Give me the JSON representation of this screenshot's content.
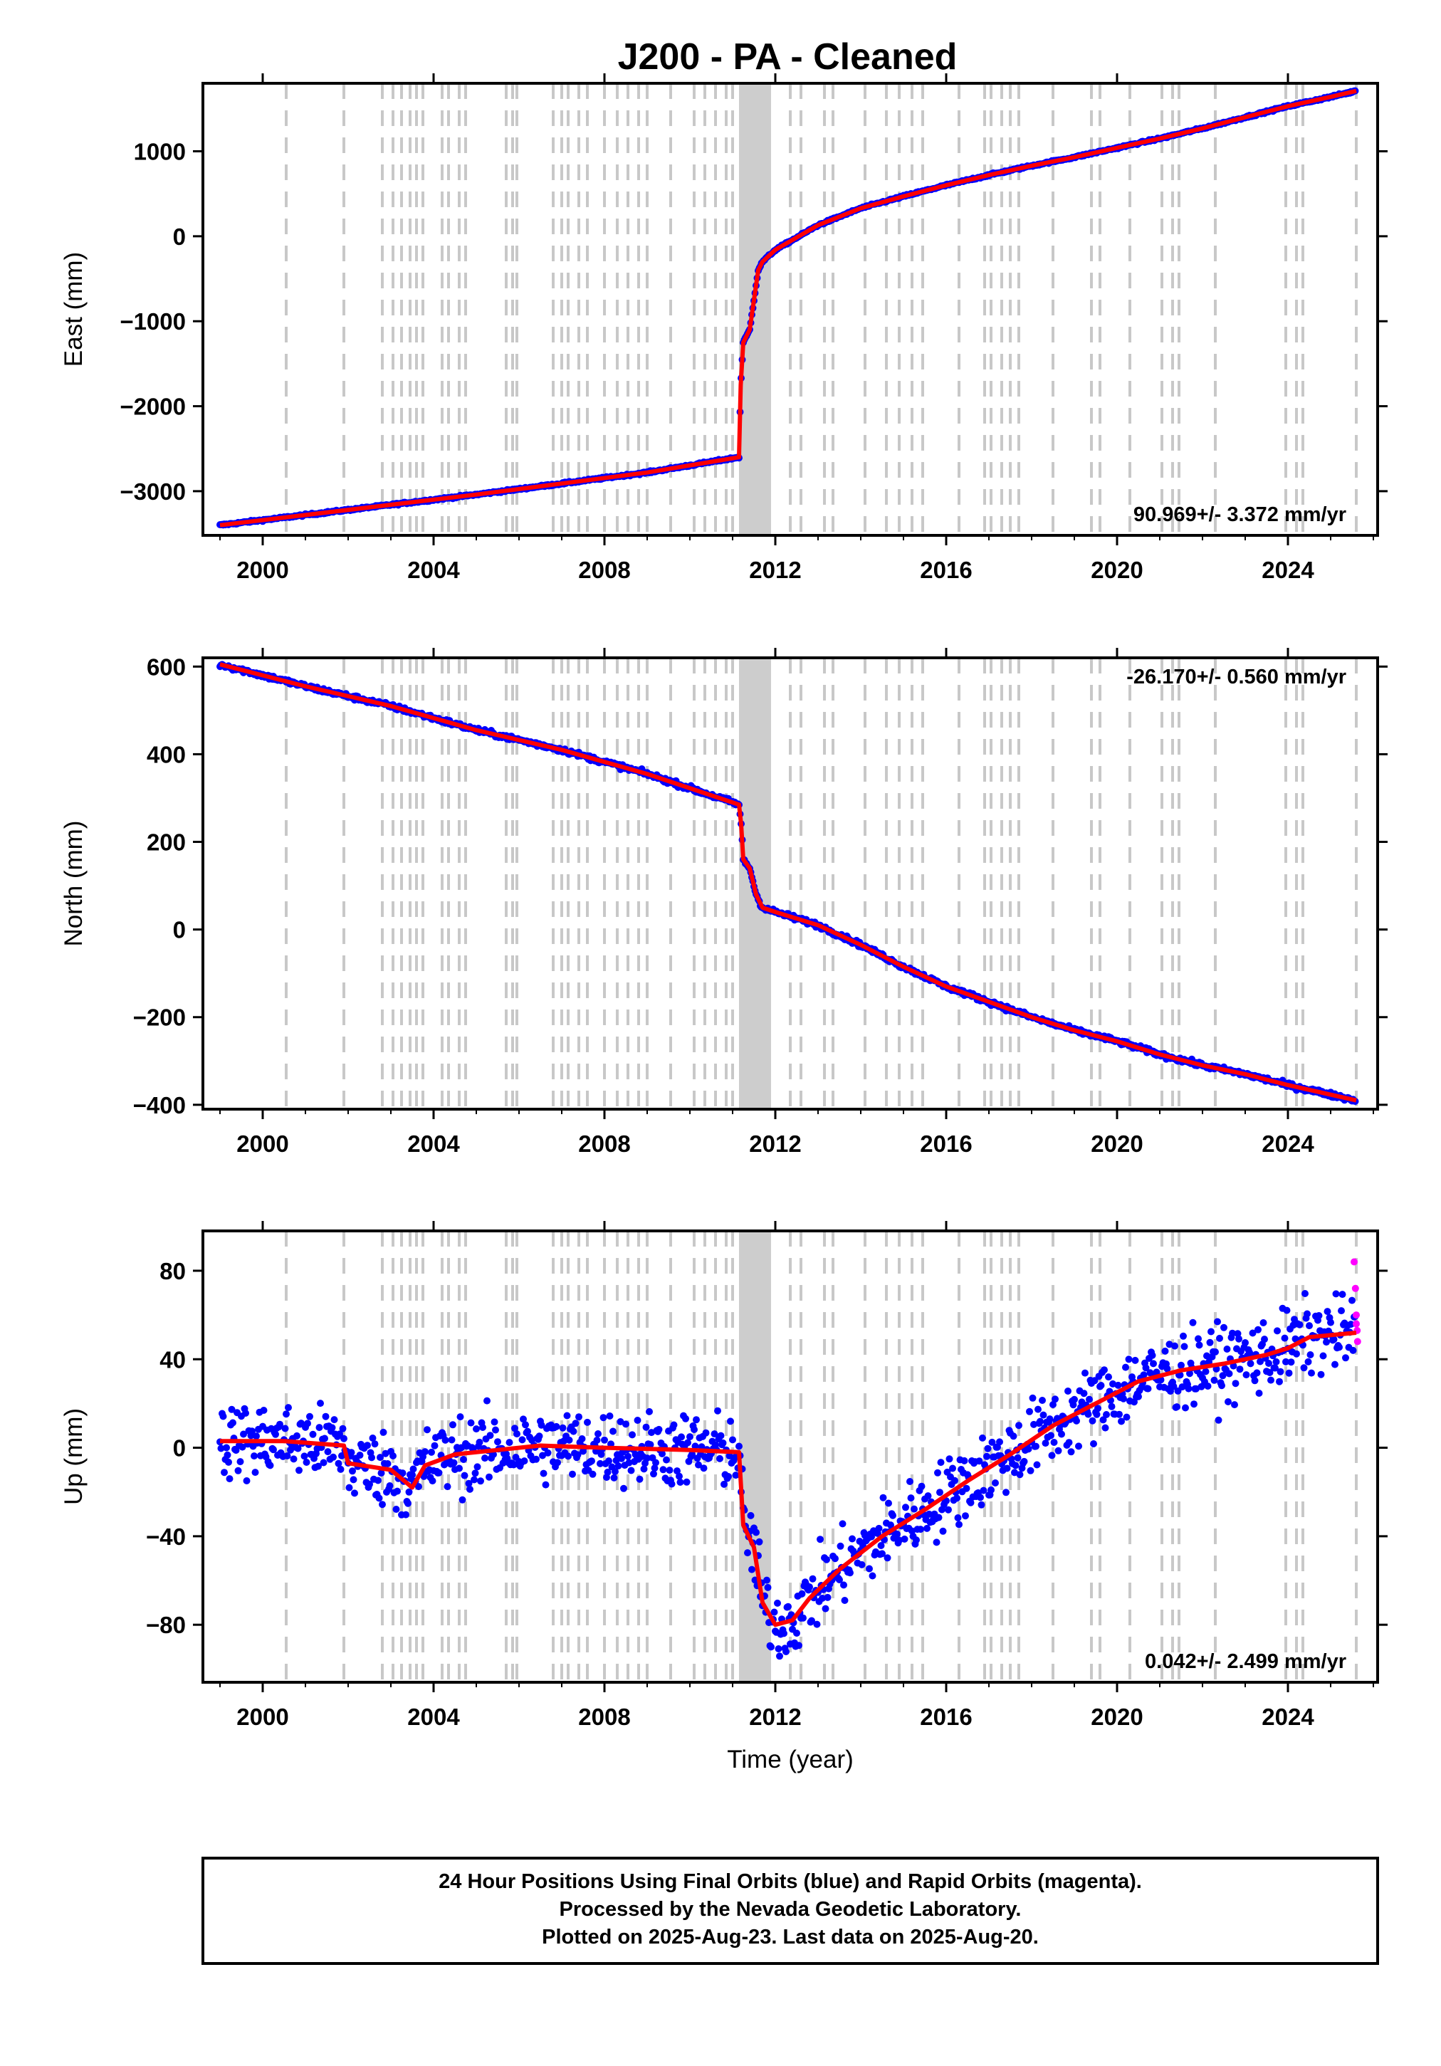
{
  "title": "J200  - PA - Cleaned",
  "colors": {
    "final_orbits": "#0000ff",
    "rapid_orbits": "#ff00ff",
    "trend": "#ff0000",
    "event_lines": "#c8c8c8"
  },
  "chart_data": [
    {
      "type": "scatter",
      "name": "east",
      "ylabel": "East (mm)",
      "xlabel": "",
      "xlim": [
        1998.6,
        2026.1
      ],
      "ylim": [
        -3520,
        1800
      ],
      "xticks": [
        2000,
        2004,
        2008,
        2012,
        2016,
        2020,
        2024
      ],
      "yticks": [
        -3000,
        -2000,
        -1000,
        0,
        1000
      ],
      "ytick_labels": [
        "−3000",
        "−2000",
        "−1000",
        "0",
        "1000"
      ],
      "rate_text": "90.969+/- 3.372 mm/yr",
      "rate_position": "bottom-right",
      "noise": 6,
      "trend": [
        [
          1999.0,
          -3400
        ],
        [
          2001.0,
          -3280
        ],
        [
          2003.0,
          -3160
        ],
        [
          2005.0,
          -3040
        ],
        [
          2007.0,
          -2910
        ],
        [
          2009.0,
          -2780
        ],
        [
          2011.15,
          -2600
        ],
        [
          2011.19,
          -1750
        ],
        [
          2011.25,
          -1250
        ],
        [
          2011.4,
          -1100
        ],
        [
          2011.6,
          -400
        ],
        [
          2011.7,
          -300
        ],
        [
          2012.0,
          -160
        ],
        [
          2013.0,
          130
        ],
        [
          2014.0,
          330
        ],
        [
          2015.0,
          470
        ],
        [
          2016.0,
          600
        ],
        [
          2017.0,
          720
        ],
        [
          2018.0,
          830
        ],
        [
          2019.0,
          930
        ],
        [
          2020.0,
          1040
        ],
        [
          2021.0,
          1150
        ],
        [
          2022.0,
          1270
        ],
        [
          2023.0,
          1400
        ],
        [
          2024.0,
          1530
        ],
        [
          2025.0,
          1640
        ],
        [
          2025.6,
          1710
        ]
      ]
    },
    {
      "type": "scatter",
      "name": "north",
      "ylabel": "North (mm)",
      "xlabel": "",
      "xlim": [
        1998.6,
        2026.1
      ],
      "ylim": [
        -410,
        620
      ],
      "xticks": [
        2000,
        2004,
        2008,
        2012,
        2016,
        2020,
        2024
      ],
      "yticks": [
        -400,
        -200,
        0,
        200,
        400,
        600
      ],
      "ytick_labels": [
        "−400",
        "−200",
        "0",
        "200",
        "400",
        "600"
      ],
      "rate_text": "-26.170+/- 0.560 mm/yr",
      "rate_position": "top-right",
      "noise": 3,
      "trend": [
        [
          1999.0,
          605
        ],
        [
          2001.0,
          555
        ],
        [
          2003.0,
          510
        ],
        [
          2005.0,
          455
        ],
        [
          2007.0,
          410
        ],
        [
          2009.0,
          355
        ],
        [
          2011.15,
          285
        ],
        [
          2011.2,
          240
        ],
        [
          2011.25,
          160
        ],
        [
          2011.4,
          140
        ],
        [
          2011.55,
          80
        ],
        [
          2011.7,
          50
        ],
        [
          2012.0,
          40
        ],
        [
          2013.0,
          10
        ],
        [
          2014.0,
          -35
        ],
        [
          2015.0,
          -85
        ],
        [
          2016.0,
          -130
        ],
        [
          2017.0,
          -165
        ],
        [
          2018.0,
          -200
        ],
        [
          2019.0,
          -230
        ],
        [
          2020.0,
          -255
        ],
        [
          2021.0,
          -285
        ],
        [
          2022.0,
          -310
        ],
        [
          2023.0,
          -330
        ],
        [
          2024.0,
          -355
        ],
        [
          2025.6,
          -390
        ]
      ]
    },
    {
      "type": "scatter",
      "name": "up",
      "ylabel": "Up (mm)",
      "xlabel": "Time (year)",
      "xlim": [
        1998.6,
        2026.1
      ],
      "ylim": [
        -106,
        98
      ],
      "xticks": [
        2000,
        2004,
        2008,
        2012,
        2016,
        2020,
        2024
      ],
      "yticks": [
        -80,
        -40,
        0,
        40,
        80
      ],
      "ytick_labels": [
        "−80",
        "−40",
        "0",
        "40",
        "80"
      ],
      "rate_text": "0.042+/- 2.499 mm/yr",
      "rate_position": "bottom-right",
      "noise": 9,
      "trend": [
        [
          1999.0,
          3
        ],
        [
          2000.5,
          3
        ],
        [
          2001.9,
          1
        ],
        [
          2002.0,
          -7
        ],
        [
          2003.0,
          -10
        ],
        [
          2003.5,
          -18
        ],
        [
          2003.8,
          -8
        ],
        [
          2004.5,
          -3
        ],
        [
          2005.5,
          -1
        ],
        [
          2006.5,
          1
        ],
        [
          2008.0,
          0
        ],
        [
          2010.0,
          -1
        ],
        [
          2011.15,
          -2
        ],
        [
          2011.25,
          -35
        ],
        [
          2011.5,
          -45
        ],
        [
          2011.7,
          -70
        ],
        [
          2012.0,
          -80
        ],
        [
          2012.4,
          -78
        ],
        [
          2012.8,
          -68
        ],
        [
          2013.5,
          -55
        ],
        [
          2014.5,
          -40
        ],
        [
          2015.5,
          -28
        ],
        [
          2016.5,
          -15
        ],
        [
          2017.5,
          -3
        ],
        [
          2018.5,
          10
        ],
        [
          2019.5,
          20
        ],
        [
          2020.5,
          30
        ],
        [
          2021.5,
          35
        ],
        [
          2022.5,
          38
        ],
        [
          2023.5,
          42
        ],
        [
          2024.0,
          45
        ],
        [
          2024.5,
          50
        ],
        [
          2025.6,
          52
        ]
      ],
      "rapid_points": [
        [
          2025.55,
          84
        ],
        [
          2025.58,
          72
        ],
        [
          2025.6,
          60
        ],
        [
          2025.62,
          53
        ],
        [
          2025.63,
          48
        ],
        [
          2025.6,
          56
        ]
      ]
    }
  ],
  "event_lines": [
    2000.55,
    2001.9,
    2002.8,
    2003.05,
    2003.25,
    2003.45,
    2003.6,
    2003.75,
    2004.2,
    2004.35,
    2004.6,
    2004.75,
    2005.7,
    2005.85,
    2005.95,
    2006.8,
    2007.0,
    2007.15,
    2007.4,
    2007.6,
    2008.0,
    2008.3,
    2008.55,
    2008.8,
    2009.0,
    2009.55,
    2010.1,
    2010.35,
    2010.6,
    2010.85,
    2011.0,
    2012.35,
    2012.6,
    2013.15,
    2013.35,
    2014.1,
    2014.6,
    2014.9,
    2015.2,
    2015.45,
    2016.3,
    2016.9,
    2017.05,
    2017.3,
    2017.5,
    2017.7,
    2018.5,
    2019.4,
    2019.6,
    2020.3,
    2021.05,
    2021.3,
    2021.45,
    2022.3,
    2023.95,
    2024.2,
    2024.35,
    2025.6
  ],
  "event_band": [
    2011.15,
    2011.9
  ],
  "footer": {
    "line1": "24 Hour Positions Using Final Orbits (blue) and Rapid Orbits (magenta).",
    "line2": "Processed by the Nevada Geodetic Laboratory.",
    "line3": "Plotted on 2025-Aug-23. Last data on 2025-Aug-20."
  }
}
